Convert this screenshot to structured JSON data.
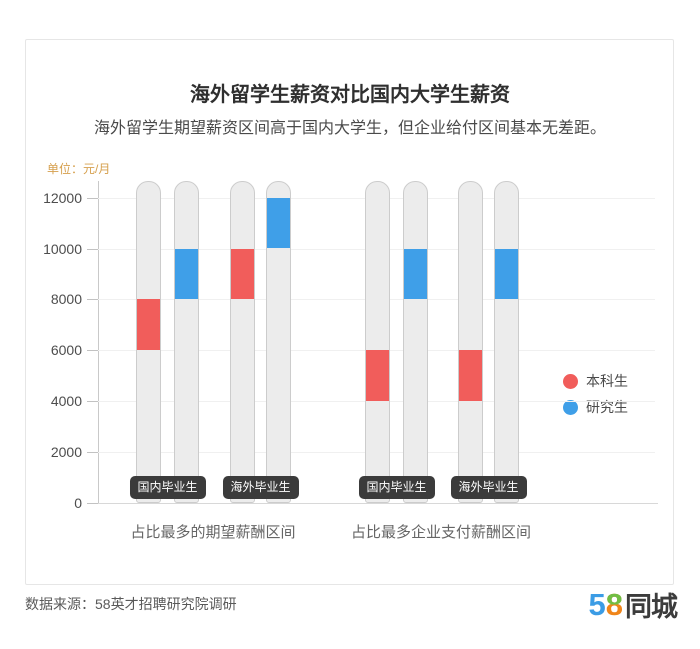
{
  "chart_data": {
    "type": "bar",
    "variant": "vertical-range-pills",
    "title": "海外留学生薪资对比国内大学生薪资",
    "subtitle": "海外留学生期望薪资区间高于国内大学生，但企业给付区间基本无差距。",
    "unit_label": "单位：元/月",
    "ylabel": "元/月",
    "ylim": [
      0,
      12600
    ],
    "y_ticks": [
      0,
      2000,
      4000,
      6000,
      8000,
      10000,
      12000
    ],
    "grid": true,
    "legend_position": "right",
    "series": [
      {
        "name": "本科生",
        "key": "undergraduate",
        "color": "#f15d5b"
      },
      {
        "name": "研究生",
        "key": "postgraduate",
        "color": "#3f9fe8"
      }
    ],
    "groups": [
      {
        "label": "占比最多的期望薪酬区间",
        "pairs": [
          {
            "label": "国内毕业生",
            "bars": [
              {
                "series": "本科生",
                "range": [
                  6000,
                  8000
                ]
              },
              {
                "series": "研究生",
                "range": [
                  8000,
                  10000
                ]
              }
            ]
          },
          {
            "label": "海外毕业生",
            "bars": [
              {
                "series": "本科生",
                "range": [
                  8000,
                  10000
                ]
              },
              {
                "series": "研究生",
                "range": [
                  10000,
                  12000
                ]
              }
            ]
          }
        ]
      },
      {
        "label": "占比最多企业支付薪酬区间",
        "pairs": [
          {
            "label": "国内毕业生",
            "bars": [
              {
                "series": "本科生",
                "range": [
                  4000,
                  6000
                ]
              },
              {
                "series": "研究生",
                "range": [
                  8000,
                  10000
                ]
              }
            ]
          },
          {
            "label": "海外毕业生",
            "bars": [
              {
                "series": "本科生",
                "range": [
                  4000,
                  6000
                ]
              },
              {
                "series": "研究生",
                "range": [
                  8000,
                  10000
                ]
              }
            ]
          }
        ]
      }
    ]
  },
  "colors": {
    "track_fill": "#ececec",
    "track_border": "#cccccc",
    "badge_bg": "#3b3b3b",
    "badge_text": "#ffffff",
    "unit_label": "#d6a04e"
  },
  "footer": {
    "source": "数据来源：58英才招聘研究院调研",
    "logo": {
      "five": "5",
      "eight": "8",
      "suffix": "同城",
      "five_color": "#3b9ce5",
      "eight_top_color": "#70be44",
      "eight_bottom_color": "#f08519",
      "suffix_color": "#3c3c3c"
    }
  }
}
